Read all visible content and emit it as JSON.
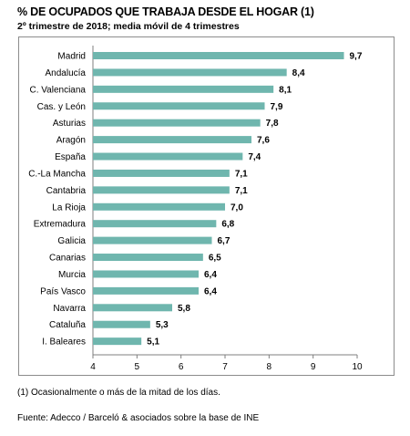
{
  "header": {
    "title": "% DE OCUPADOS QUE TRABAJA DESDE EL HOGAR (1)",
    "subtitle": "2º trimestre de 2018; media móvil de 4 trimestres"
  },
  "footer": {
    "note": "(1) Ocasionalmente o más de la mitad de los días.",
    "source": "Fuente: Adecco / Barceló & asociados sobre la base de INE"
  },
  "chart_data": {
    "type": "bar",
    "orientation": "horizontal",
    "title": "% DE OCUPADOS QUE TRABAJA DESDE EL HOGAR (1)",
    "subtitle": "2º trimestre de 2018; media móvil de 4 trimestres",
    "categories": [
      "Madrid",
      "Andalucía",
      "C. Valenciana",
      "Cas. y León",
      "Asturias",
      "Aragón",
      "España",
      "C.-La Mancha",
      "Cantabria",
      "La Rioja",
      "Extremadura",
      "Galicia",
      "Canarias",
      "Murcia",
      "País Vasco",
      "Navarra",
      "Cataluña",
      "I. Baleares"
    ],
    "values": [
      9.7,
      8.4,
      8.1,
      7.9,
      7.8,
      7.6,
      7.4,
      7.1,
      7.1,
      7.0,
      6.8,
      6.7,
      6.5,
      6.4,
      6.4,
      5.8,
      5.3,
      5.1
    ],
    "value_labels": [
      "9,7",
      "8,4",
      "8,1",
      "7,9",
      "7,8",
      "7,6",
      "7,4",
      "7,1",
      "7,1",
      "7,0",
      "6,8",
      "6,7",
      "6,5",
      "6,4",
      "6,4",
      "5,8",
      "5,3",
      "5,1"
    ],
    "xlim": [
      4,
      10
    ],
    "x_ticks": [
      "4",
      "5",
      "6",
      "7",
      "8",
      "9",
      "10"
    ],
    "xlabel": "",
    "ylabel": "",
    "grid": false,
    "legend": "none",
    "bar_color": "#6fb6ae"
  }
}
